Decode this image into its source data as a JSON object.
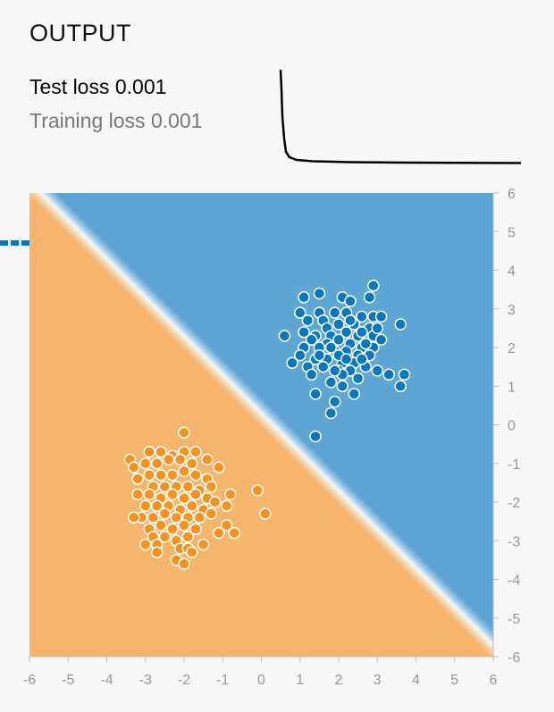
{
  "output": {
    "title": "OUTPUT",
    "test_loss_label": "Test loss",
    "test_loss_value": "0.001",
    "training_loss_label": "Training loss",
    "training_loss_value": "0.001"
  },
  "colors": {
    "positive": "#0877bd",
    "negative": "#f59322",
    "positive_bg": "#5ea7d5",
    "negative_bg": "#f5b56c",
    "axis_text": "#999999",
    "background": "#f7f7f7"
  },
  "loss_curve": {
    "description_values": [
      0.55,
      0.2,
      0.06,
      0.02,
      0.012,
      0.008,
      0.006,
      0.005,
      0.004,
      0.004,
      0.003,
      0.003,
      0.003,
      0.002,
      0.002,
      0.002,
      0.002,
      0.001,
      0.001,
      0.001,
      0.001,
      0.001,
      0.001,
      0.001,
      0.001,
      0.001,
      0.001,
      0.001,
      0.001,
      0.001
    ]
  },
  "chart_data": {
    "type": "scatter",
    "x_ticks": [
      "-6",
      "-5",
      "-4",
      "-3",
      "-2",
      "-1",
      "0",
      "1",
      "2",
      "3",
      "4",
      "5",
      "6"
    ],
    "y_ticks": [
      "6",
      "5",
      "4",
      "3",
      "2",
      "1",
      "0",
      "-1",
      "-2",
      "-3",
      "-4",
      "-5",
      "-6"
    ],
    "xlim": [
      -6,
      6
    ],
    "ylim": [
      -6,
      6
    ],
    "decision_boundary": "x + y = 0.3",
    "series": [
      {
        "class": "positive",
        "points": [
          [
            2.9,
            3.6
          ],
          [
            1.5,
            3.4
          ],
          [
            1.1,
            3.3
          ],
          [
            2.1,
            3.3
          ],
          [
            2.3,
            3.2
          ],
          [
            2.8,
            3.3
          ],
          [
            1.0,
            2.9
          ],
          [
            1.5,
            2.9
          ],
          [
            1.9,
            2.9
          ],
          [
            2.2,
            2.9
          ],
          [
            2.6,
            2.8
          ],
          [
            2.9,
            2.8
          ],
          [
            3.1,
            2.8
          ],
          [
            3.6,
            2.6
          ],
          [
            1.2,
            2.7
          ],
          [
            1.6,
            2.7
          ],
          [
            2.0,
            2.6
          ],
          [
            2.4,
            2.6
          ],
          [
            2.8,
            2.5
          ],
          [
            1.7,
            2.5
          ],
          [
            2.2,
            2.4
          ],
          [
            1.4,
            2.3
          ],
          [
            1.8,
            2.3
          ],
          [
            2.0,
            2.2
          ],
          [
            2.5,
            2.3
          ],
          [
            2.9,
            2.3
          ],
          [
            3.1,
            2.2
          ],
          [
            0.6,
            2.3
          ],
          [
            1.3,
            2.2
          ],
          [
            1.7,
            2.1
          ],
          [
            2.3,
            2.1
          ],
          [
            2.6,
            2.0
          ],
          [
            2.9,
            2.0
          ],
          [
            1.1,
            2.0
          ],
          [
            1.5,
            2.0
          ],
          [
            1.9,
            1.9
          ],
          [
            2.2,
            1.9
          ],
          [
            2.5,
            1.8
          ],
          [
            2.8,
            1.8
          ],
          [
            1.0,
            1.8
          ],
          [
            1.4,
            1.7
          ],
          [
            1.7,
            1.7
          ],
          [
            2.1,
            1.6
          ],
          [
            2.4,
            1.6
          ],
          [
            2.7,
            1.5
          ],
          [
            0.8,
            1.6
          ],
          [
            1.2,
            1.5
          ],
          [
            1.6,
            1.5
          ],
          [
            2.0,
            1.4
          ],
          [
            2.3,
            1.4
          ],
          [
            3.0,
            1.4
          ],
          [
            3.3,
            1.3
          ],
          [
            3.7,
            1.3
          ],
          [
            1.3,
            1.3
          ],
          [
            2.1,
            1.3
          ],
          [
            2.5,
            1.2
          ],
          [
            1.8,
            1.1
          ],
          [
            2.1,
            1.0
          ],
          [
            3.6,
            1.0
          ],
          [
            1.4,
            0.8
          ],
          [
            2.4,
            0.8
          ],
          [
            1.9,
            0.6
          ],
          [
            1.8,
            0.3
          ],
          [
            1.4,
            -0.3
          ],
          [
            2.0,
            1.8
          ],
          [
            2.6,
            2.4
          ],
          [
            1.8,
            2.0
          ],
          [
            2.2,
            1.7
          ],
          [
            1.5,
            1.8
          ],
          [
            2.7,
            2.1
          ],
          [
            2.3,
            2.7
          ],
          [
            1.1,
            2.4
          ],
          [
            3.0,
            2.5
          ],
          [
            1.9,
            1.4
          ],
          [
            2.6,
            1.7
          ]
        ]
      },
      {
        "class": "negative",
        "points": [
          [
            -2.0,
            -0.2
          ],
          [
            -3.4,
            -0.9
          ],
          [
            -2.9,
            -0.7
          ],
          [
            -2.6,
            -0.7
          ],
          [
            -2.3,
            -0.8
          ],
          [
            -2.0,
            -0.7
          ],
          [
            -1.7,
            -0.7
          ],
          [
            -3.3,
            -1.1
          ],
          [
            -3.0,
            -1.0
          ],
          [
            -2.7,
            -1.0
          ],
          [
            -2.4,
            -0.9
          ],
          [
            -2.1,
            -0.9
          ],
          [
            -1.8,
            -1.0
          ],
          [
            -1.4,
            -0.9
          ],
          [
            -1.1,
            -1.1
          ],
          [
            -3.2,
            -1.4
          ],
          [
            -2.9,
            -1.3
          ],
          [
            -2.6,
            -1.3
          ],
          [
            -2.3,
            -1.3
          ],
          [
            -2.0,
            -1.2
          ],
          [
            -1.7,
            -1.3
          ],
          [
            -1.4,
            -1.4
          ],
          [
            -2.8,
            -1.6
          ],
          [
            -2.5,
            -1.6
          ],
          [
            -2.2,
            -1.6
          ],
          [
            -1.9,
            -1.6
          ],
          [
            -1.6,
            -1.7
          ],
          [
            -1.3,
            -1.6
          ],
          [
            -3.2,
            -1.8
          ],
          [
            -2.9,
            -1.8
          ],
          [
            -2.6,
            -1.9
          ],
          [
            -2.3,
            -1.8
          ],
          [
            -2.0,
            -1.9
          ],
          [
            -1.7,
            -1.8
          ],
          [
            -1.4,
            -1.9
          ],
          [
            -0.8,
            -1.8
          ],
          [
            -0.1,
            -1.7
          ],
          [
            -3.0,
            -2.1
          ],
          [
            -2.7,
            -2.1
          ],
          [
            -2.4,
            -2.1
          ],
          [
            -2.1,
            -2.2
          ],
          [
            -1.8,
            -2.1
          ],
          [
            -1.5,
            -2.2
          ],
          [
            -1.2,
            -2.0
          ],
          [
            -0.9,
            -2.1
          ],
          [
            -3.1,
            -2.4
          ],
          [
            -2.8,
            -2.4
          ],
          [
            -2.5,
            -2.3
          ],
          [
            -2.2,
            -2.4
          ],
          [
            -1.9,
            -2.4
          ],
          [
            -1.6,
            -2.4
          ],
          [
            -1.3,
            -2.3
          ],
          [
            0.1,
            -2.3
          ],
          [
            -3.3,
            -2.4
          ],
          [
            -2.9,
            -2.7
          ],
          [
            -2.6,
            -2.6
          ],
          [
            -2.3,
            -2.7
          ],
          [
            -2.0,
            -2.6
          ],
          [
            -1.7,
            -2.7
          ],
          [
            -0.9,
            -2.6
          ],
          [
            -2.8,
            -2.9
          ],
          [
            -2.5,
            -2.9
          ],
          [
            -2.2,
            -3.0
          ],
          [
            -1.9,
            -2.9
          ],
          [
            -3.0,
            -3.1
          ],
          [
            -2.7,
            -3.1
          ],
          [
            -2.1,
            -3.2
          ],
          [
            -1.5,
            -3.1
          ],
          [
            -1.1,
            -2.8
          ],
          [
            -0.7,
            -2.8
          ],
          [
            -2.7,
            -3.3
          ],
          [
            -1.9,
            -3.2
          ],
          [
            -2.2,
            -3.5
          ],
          [
            -2.0,
            -3.6
          ],
          [
            -1.8,
            -3.3
          ]
        ]
      }
    ]
  }
}
